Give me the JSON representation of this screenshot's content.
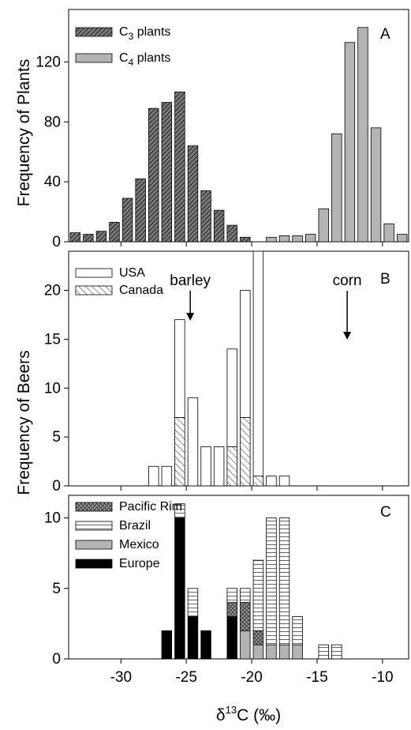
{
  "chart_data": [
    {
      "type": "bar",
      "panel": "A",
      "ylabel": "Frequency of Plants",
      "xlim": [
        -34,
        -8
      ],
      "ylim": [
        0,
        155
      ],
      "yticks": [
        0,
        40,
        80,
        120
      ],
      "legend_position": "top-left",
      "series": [
        {
          "name": "C3 plants",
          "legend_main": "C",
          "legend_sub": "3",
          "legend_rest": " plants",
          "fill": "#595959",
          "pattern": "hatch",
          "points": [
            [
              -33.5,
              6
            ],
            [
              -32.5,
              5
            ],
            [
              -31.5,
              7
            ],
            [
              -30.5,
              13
            ],
            [
              -29.5,
              29
            ],
            [
              -28.5,
              42
            ],
            [
              -27.5,
              89
            ],
            [
              -26.5,
              93
            ],
            [
              -25.5,
              100
            ],
            [
              -24.5,
              64
            ],
            [
              -23.5,
              34
            ],
            [
              -22.5,
              21
            ],
            [
              -21.5,
              11
            ],
            [
              -20.5,
              3
            ]
          ]
        },
        {
          "name": "C4 plants",
          "legend_main": "C",
          "legend_sub": "4",
          "legend_rest": " plants",
          "fill": "#b4b4b4",
          "pattern": "solid",
          "points": [
            [
              -18.5,
              3
            ],
            [
              -17.5,
              4
            ],
            [
              -16.5,
              4
            ],
            [
              -15.5,
              5
            ],
            [
              -14.5,
              22
            ],
            [
              -13.5,
              72
            ],
            [
              -12.5,
              133
            ],
            [
              -11.5,
              143
            ],
            [
              -10.5,
              76
            ],
            [
              -9.5,
              12
            ],
            [
              -8.5,
              5
            ]
          ]
        }
      ]
    },
    {
      "type": "bar",
      "panel": "B",
      "ylabel": "Frequency of Beers",
      "xlim": [
        -34,
        -8
      ],
      "ylim": [
        0,
        24
      ],
      "yticks": [
        0,
        5,
        10,
        15,
        20
      ],
      "legend_position": "top-left",
      "stacked": true,
      "series": [
        {
          "name": "Canada",
          "fill": "#ffffff",
          "pattern": "diagonal",
          "points": [
            [
              -25.5,
              7
            ],
            [
              -21.5,
              4
            ],
            [
              -20.5,
              7
            ],
            [
              -19.5,
              1
            ]
          ]
        },
        {
          "name": "USA",
          "fill": "#ffffff",
          "pattern": "open",
          "points": [
            [
              -27.5,
              2
            ],
            [
              -26.5,
              2
            ],
            [
              -25.5,
              10
            ],
            [
              -24.5,
              9
            ],
            [
              -23.5,
              4
            ],
            [
              -22.5,
              4
            ],
            [
              -21.5,
              10
            ],
            [
              -20.5,
              13
            ],
            [
              -19.5,
              23
            ],
            [
              -18.5,
              1
            ],
            [
              -17.5,
              1
            ]
          ]
        }
      ],
      "annotations": [
        {
          "text": "barley",
          "x": -24.7
        },
        {
          "text": "corn",
          "x": -12.7
        }
      ]
    },
    {
      "type": "bar",
      "panel": "C",
      "xlabel_prefix": "δ",
      "xlabel_sup": "13",
      "xlabel_rest": "C (‰)",
      "xlim": [
        -34,
        -8
      ],
      "xticks": [
        -30,
        -25,
        -20,
        -15,
        -10
      ],
      "ylim": [
        0,
        11.6
      ],
      "yticks": [
        0,
        5,
        10
      ],
      "legend_position": "top-left",
      "stacked": true,
      "series": [
        {
          "name": "Europe",
          "fill": "#000000",
          "pattern": "solid",
          "points": [
            [
              -26.5,
              2
            ],
            [
              -25.5,
              10
            ],
            [
              -24.5,
              3
            ],
            [
              -23.5,
              2
            ],
            [
              -21.5,
              3
            ]
          ]
        },
        {
          "name": "Mexico",
          "fill": "#b4b4b4",
          "pattern": "solid",
          "points": [
            [
              -20.5,
              2
            ],
            [
              -19.5,
              1
            ],
            [
              -18.5,
              1
            ],
            [
              -17.5,
              1
            ],
            [
              -16.5,
              1
            ]
          ]
        },
        {
          "name": "Pacific Rim",
          "fill": "#b4b4b4",
          "pattern": "cross",
          "points": [
            [
              -21.5,
              1
            ],
            [
              -20.5,
              2
            ],
            [
              -19.5,
              1
            ]
          ]
        },
        {
          "name": "Brazil",
          "fill": "#ffffff",
          "pattern": "brick",
          "points": [
            [
              -25.5,
              1
            ],
            [
              -24.5,
              2
            ],
            [
              -21.5,
              1
            ],
            [
              -20.5,
              1
            ],
            [
              -19.5,
              5
            ],
            [
              -18.5,
              9
            ],
            [
              -17.5,
              9
            ],
            [
              -16.5,
              2
            ],
            [
              -14.5,
              1
            ],
            [
              -13.5,
              1
            ]
          ]
        }
      ]
    }
  ]
}
